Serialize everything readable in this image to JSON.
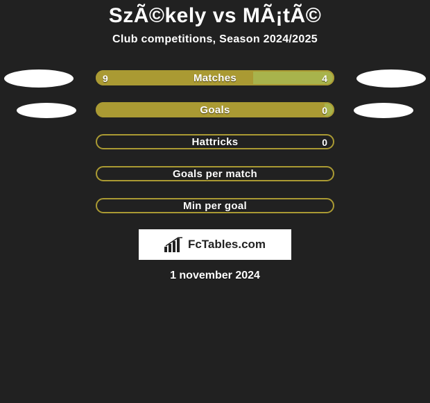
{
  "background_color": "#212121",
  "text_color": "#ffffff",
  "title": "SzÃ©kely vs MÃ¡tÃ©",
  "subtitle": "Club competitions, Season 2024/2025",
  "bar": {
    "track_width": 346,
    "height": 24,
    "left_color": "#aa9a33",
    "right_color": "#a8b34c",
    "outline_color": "#aa9a33",
    "outline_width": 2
  },
  "ellipse_color": "#ffffff",
  "rows": [
    {
      "label": "Matches",
      "left_value": "9",
      "right_value": "4",
      "left_pct": 66,
      "right_pct": 34,
      "show_left_ellipse": true,
      "show_right_ellipse": true,
      "ellipse_small": false,
      "filled": true
    },
    {
      "label": "Goals",
      "left_value": "",
      "right_value": "0",
      "left_pct": 96,
      "right_pct": 4,
      "show_left_ellipse": true,
      "show_right_ellipse": true,
      "ellipse_small": true,
      "filled": true
    },
    {
      "label": "Hattricks",
      "left_value": "",
      "right_value": "0",
      "left_pct": 0,
      "right_pct": 0,
      "show_left_ellipse": false,
      "show_right_ellipse": false,
      "ellipse_small": false,
      "filled": false
    },
    {
      "label": "Goals per match",
      "left_value": "",
      "right_value": "",
      "left_pct": 0,
      "right_pct": 0,
      "show_left_ellipse": false,
      "show_right_ellipse": false,
      "ellipse_small": false,
      "filled": false
    },
    {
      "label": "Min per goal",
      "left_value": "",
      "right_value": "",
      "left_pct": 0,
      "right_pct": 0,
      "show_left_ellipse": false,
      "show_right_ellipse": false,
      "ellipse_small": false,
      "filled": false
    }
  ],
  "logo_text": "FcTables.com",
  "date": "1 november 2024"
}
